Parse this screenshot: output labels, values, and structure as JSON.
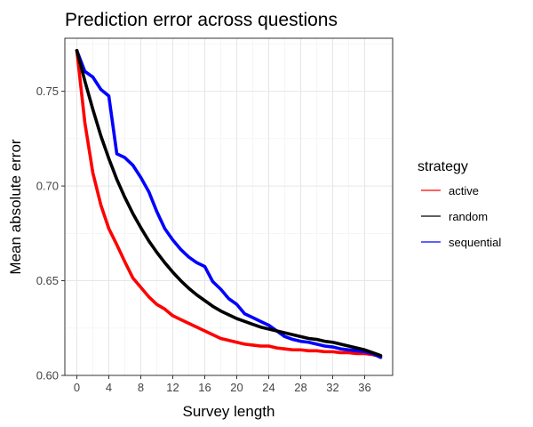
{
  "chart_data": {
    "type": "line",
    "title": "Prediction error across questions",
    "xlabel": "Survey length",
    "ylabel": "Mean absolute error",
    "xlim": [
      -1.5,
      39.5
    ],
    "ylim": [
      0.6,
      0.778
    ],
    "x_ticks": [
      0,
      4,
      8,
      12,
      16,
      20,
      24,
      28,
      32,
      36
    ],
    "x_tick_labels": [
      "0",
      "4",
      "8",
      "12",
      "16",
      "20",
      "24",
      "28",
      "32",
      "36"
    ],
    "y_ticks": [
      0.6,
      0.65,
      0.7,
      0.75
    ],
    "y_tick_labels": [
      "0.60",
      "0.65",
      "0.70",
      "0.75"
    ],
    "grid": true,
    "legend": {
      "title": "strategy",
      "position": "right"
    },
    "series": [
      {
        "name": "active",
        "color": "#ff0000",
        "x": [
          0,
          1,
          2,
          3,
          4,
          5,
          6,
          7,
          8,
          9,
          10,
          11,
          12,
          13,
          14,
          15,
          16,
          17,
          18,
          19,
          20,
          21,
          22,
          23,
          24,
          25,
          26,
          27,
          28,
          29,
          30,
          31,
          32,
          33,
          34,
          35,
          36,
          37,
          38
        ],
        "values": [
          0.7715,
          0.7335,
          0.707,
          0.69,
          0.6775,
          0.669,
          0.66,
          0.6515,
          0.6465,
          0.6415,
          0.6375,
          0.635,
          0.6315,
          0.6295,
          0.6275,
          0.6255,
          0.6235,
          0.6215,
          0.6195,
          0.6185,
          0.6175,
          0.6165,
          0.616,
          0.6155,
          0.6155,
          0.6145,
          0.614,
          0.6135,
          0.6135,
          0.613,
          0.613,
          0.6125,
          0.6125,
          0.612,
          0.612,
          0.6115,
          0.6115,
          0.611,
          0.61
        ]
      },
      {
        "name": "random",
        "color": "#000000",
        "x": [
          0,
          1,
          2,
          3,
          4,
          5,
          6,
          7,
          8,
          9,
          10,
          11,
          12,
          13,
          14,
          15,
          16,
          17,
          18,
          19,
          20,
          21,
          22,
          23,
          24,
          25,
          26,
          27,
          28,
          29,
          30,
          31,
          32,
          33,
          34,
          35,
          36,
          37,
          38
        ],
        "values": [
          0.7715,
          0.7555,
          0.7405,
          0.7265,
          0.7145,
          0.7035,
          0.694,
          0.6855,
          0.678,
          0.671,
          0.665,
          0.6595,
          0.6545,
          0.65,
          0.646,
          0.6425,
          0.6395,
          0.6365,
          0.634,
          0.632,
          0.63,
          0.6285,
          0.627,
          0.6255,
          0.6245,
          0.6235,
          0.6225,
          0.6215,
          0.6205,
          0.6195,
          0.619,
          0.618,
          0.6175,
          0.6165,
          0.6155,
          0.6145,
          0.6135,
          0.612,
          0.6105
        ]
      },
      {
        "name": "sequential",
        "color": "#0000ff",
        "x": [
          0,
          1,
          2,
          3,
          4,
          5,
          6,
          7,
          8,
          9,
          10,
          11,
          12,
          13,
          14,
          15,
          16,
          17,
          18,
          19,
          20,
          21,
          22,
          23,
          24,
          25,
          26,
          27,
          28,
          29,
          30,
          31,
          32,
          33,
          34,
          35,
          36,
          37,
          38
        ],
        "values": [
          0.7715,
          0.7605,
          0.7575,
          0.751,
          0.7475,
          0.717,
          0.715,
          0.711,
          0.7045,
          0.697,
          0.6865,
          0.6775,
          0.6715,
          0.6665,
          0.6625,
          0.6595,
          0.6575,
          0.6495,
          0.6455,
          0.6405,
          0.6375,
          0.6325,
          0.6305,
          0.6285,
          0.6265,
          0.6235,
          0.6205,
          0.619,
          0.618,
          0.6175,
          0.6165,
          0.6155,
          0.615,
          0.614,
          0.6135,
          0.613,
          0.6125,
          0.6115,
          0.6095
        ]
      }
    ]
  }
}
